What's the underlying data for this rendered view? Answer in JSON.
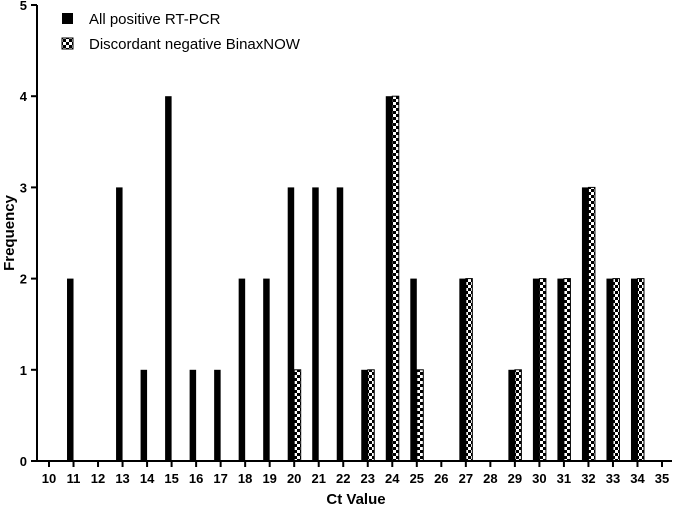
{
  "chart_data": {
    "type": "bar",
    "xlabel": "Ct Value",
    "ylabel": "Frequency",
    "categories": [
      "10",
      "11",
      "12",
      "13",
      "14",
      "15",
      "16",
      "17",
      "18",
      "19",
      "20",
      "21",
      "22",
      "23",
      "24",
      "25",
      "26",
      "27",
      "28",
      "29",
      "30",
      "31",
      "32",
      "33",
      "34",
      "35"
    ],
    "ylim": [
      0,
      5
    ],
    "yticks": [
      "0",
      "1",
      "2",
      "3",
      "4",
      "5"
    ],
    "legend_position": "top-left",
    "grid": false,
    "series": [
      {
        "name": "All positive RT-PCR",
        "color": "#000000",
        "pattern": "solid",
        "values": [
          0,
          2,
          0,
          3,
          1,
          4,
          1,
          1,
          2,
          2,
          3,
          3,
          3,
          1,
          4,
          2,
          0,
          2,
          0,
          1,
          2,
          2,
          3,
          2,
          2,
          0
        ]
      },
      {
        "name": "Discordant negative BinaxNOW",
        "color": "#000000",
        "pattern": "checkerboard",
        "values": [
          0,
          0,
          0,
          0,
          0,
          0,
          0,
          0,
          0,
          0,
          1,
          0,
          0,
          1,
          4,
          1,
          0,
          2,
          0,
          1,
          2,
          2,
          3,
          2,
          2,
          0
        ]
      }
    ]
  }
}
